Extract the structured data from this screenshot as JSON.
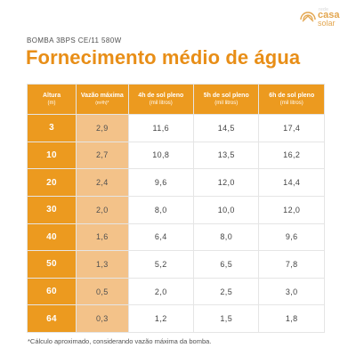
{
  "logo": {
    "small_text": "rede",
    "line1": "casa",
    "line2": "solar"
  },
  "subtitle": "BOMBA 3BPS CE/11 580W",
  "title": "Fornecimento médio de água",
  "table": {
    "headers": [
      {
        "label": "Altura",
        "sub": "(m)",
        "unit": ""
      },
      {
        "label": "Vazão máxima",
        "sub": "",
        "unit": "(m³/h)*"
      },
      {
        "label": "4h de sol pleno",
        "sub": "(mil litros)",
        "unit": ""
      },
      {
        "label": "5h de sol pleno",
        "sub": "(mil litros)",
        "unit": ""
      },
      {
        "label": "6h de sol pleno",
        "sub": "(mil litros)",
        "unit": ""
      }
    ],
    "rows": [
      [
        "3",
        "2,9",
        "11,6",
        "14,5",
        "17,4"
      ],
      [
        "10",
        "2,7",
        "10,8",
        "13,5",
        "16,2"
      ],
      [
        "20",
        "2,4",
        "9,6",
        "12,0",
        "14,4"
      ],
      [
        "30",
        "2,0",
        "8,0",
        "10,0",
        "12,0"
      ],
      [
        "40",
        "1,6",
        "6,4",
        "8,0",
        "9,6"
      ],
      [
        "50",
        "1,3",
        "5,2",
        "6,5",
        "7,8"
      ],
      [
        "60",
        "0,5",
        "2,0",
        "2,5",
        "3,0"
      ],
      [
        "64",
        "0,3",
        "1,2",
        "1,5",
        "1,8"
      ]
    ]
  },
  "footnote": "*Cálculo aproximado, considerando vazão máxima da bomba.",
  "colors": {
    "accent": "#ec9a1f",
    "accent_light": "#f3c289",
    "title": "#e88e17",
    "text": "#444444"
  }
}
